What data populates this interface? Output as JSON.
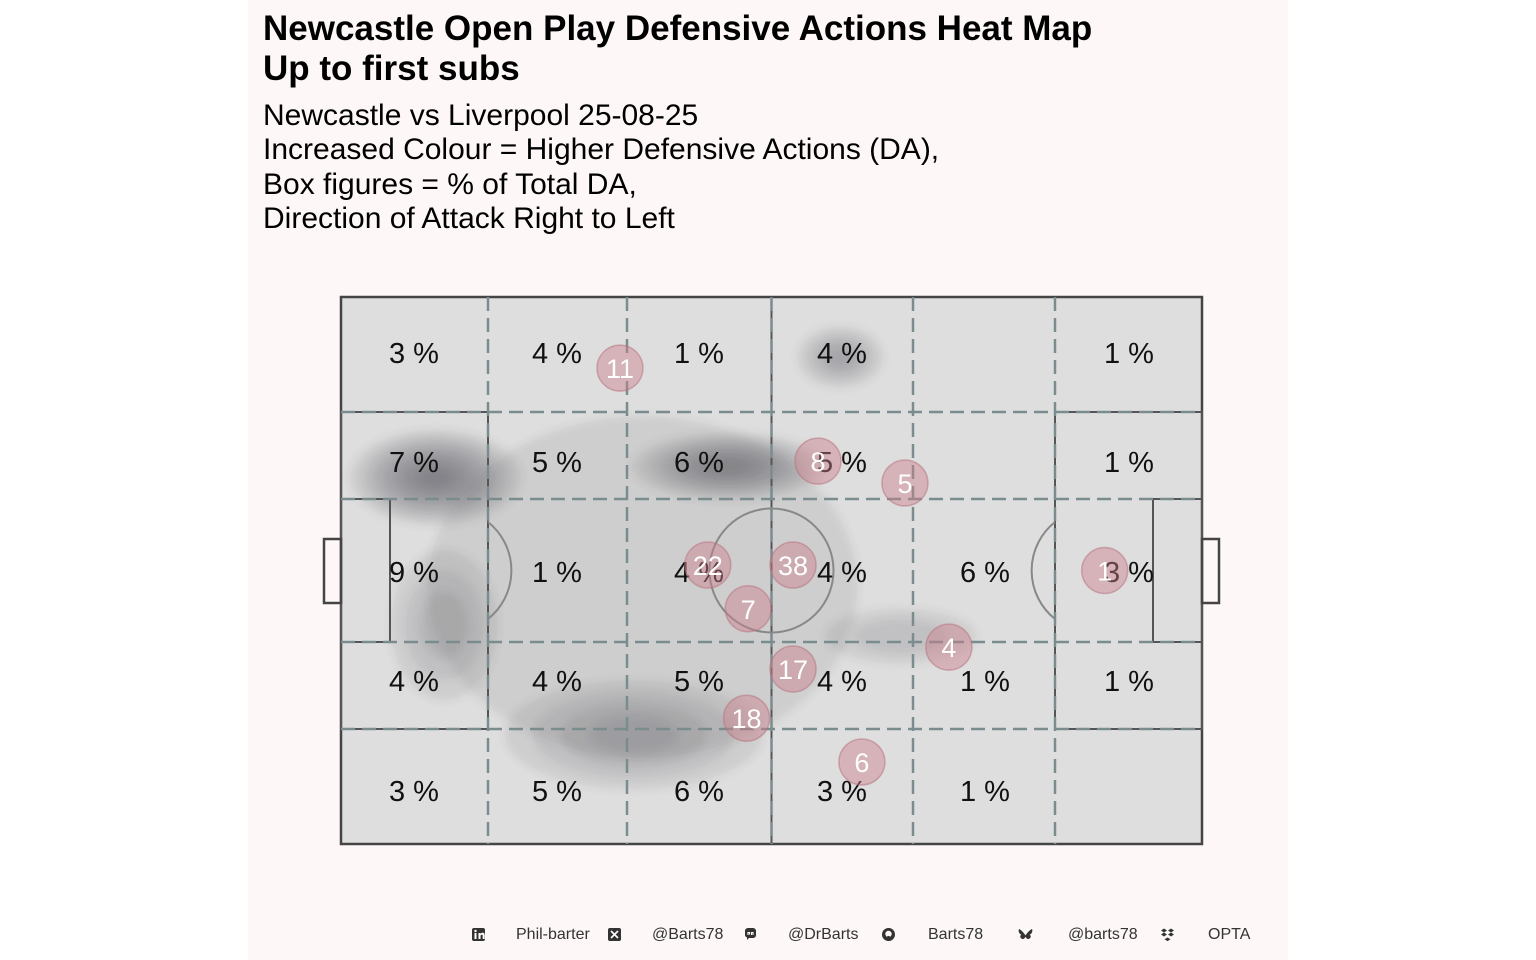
{
  "title_line1": "Newcastle Open Play Defensive Actions Heat Map",
  "title_line2": "Up to first subs",
  "subtitle_lines": [
    "Newcastle vs Liverpool 25-08-25",
    "Increased Colour = Higher Defensive Actions (DA),",
    "Box figures = % of Total DA,",
    "Direction of Attack Right to Left"
  ],
  "colors": {
    "background": "#fdf8f7",
    "pitch": "#dedede",
    "density_dark": "#454b55",
    "player_marker": "#c97f8a",
    "zone_lines": "#7b8c8f"
  },
  "chart_data": {
    "type": "heatmap",
    "zone_percentages": [
      [
        "3 %",
        "4 %",
        "1 %",
        "4 %",
        "",
        "1 %"
      ],
      [
        "7 %",
        "5 %",
        "6 %",
        "5 %",
        "",
        "1 %"
      ],
      [
        "9 %",
        "1 %",
        "4 %",
        "4 %",
        "6 %",
        "3 %"
      ],
      [
        "4 %",
        "4 %",
        "5 %",
        "4 %",
        "1 %",
        "1 %"
      ],
      [
        "3 %",
        "5 %",
        "6 %",
        "3 %",
        "1 %",
        ""
      ]
    ],
    "players": [
      {
        "number": "11",
        "x": 32.4,
        "y": 87
      },
      {
        "number": "8",
        "x": 55.4,
        "y": 70
      },
      {
        "number": "5",
        "x": 65.5,
        "y": 66
      },
      {
        "number": "22",
        "x": 42.6,
        "y": 51
      },
      {
        "number": "38",
        "x": 52.5,
        "y": 51
      },
      {
        "number": "7",
        "x": 47.3,
        "y": 43
      },
      {
        "number": "1",
        "x": 88.7,
        "y": 50
      },
      {
        "number": "4",
        "x": 70.6,
        "y": 36
      },
      {
        "number": "17",
        "x": 52.5,
        "y": 32
      },
      {
        "number": "18",
        "x": 47.1,
        "y": 23
      },
      {
        "number": "6",
        "x": 60.5,
        "y": 15
      }
    ],
    "density_blobs": [
      {
        "x": 11,
        "y": 67,
        "rx": 8,
        "ry": 7,
        "level": 8
      },
      {
        "x": 45,
        "y": 69,
        "rx": 9,
        "ry": 5,
        "level": 7
      },
      {
        "x": 58,
        "y": 89,
        "rx": 4,
        "ry": 4.5,
        "level": 4
      },
      {
        "x": 34,
        "y": 20,
        "rx": 12,
        "ry": 8,
        "level": 4
      },
      {
        "x": 65,
        "y": 38,
        "rx": 7,
        "ry": 4,
        "level": 2
      },
      {
        "x": 12,
        "y": 40,
        "rx": 5,
        "ry": 11,
        "level": 3
      },
      {
        "x": 35,
        "y": 47,
        "rx": 20,
        "ry": 25,
        "level": 1
      }
    ]
  },
  "footer": [
    {
      "icon": "linkedin-icon",
      "text": "Phil-barter"
    },
    {
      "icon": "x-twitter-icon",
      "text": "@Barts78"
    },
    {
      "icon": "mastodon-icon",
      "text": "@DrBarts"
    },
    {
      "icon": "github-icon",
      "text": "Barts78"
    },
    {
      "icon": "bluesky-icon",
      "text": "@barts78"
    },
    {
      "icon": "dropbox-icon",
      "text": "OPTA"
    }
  ]
}
